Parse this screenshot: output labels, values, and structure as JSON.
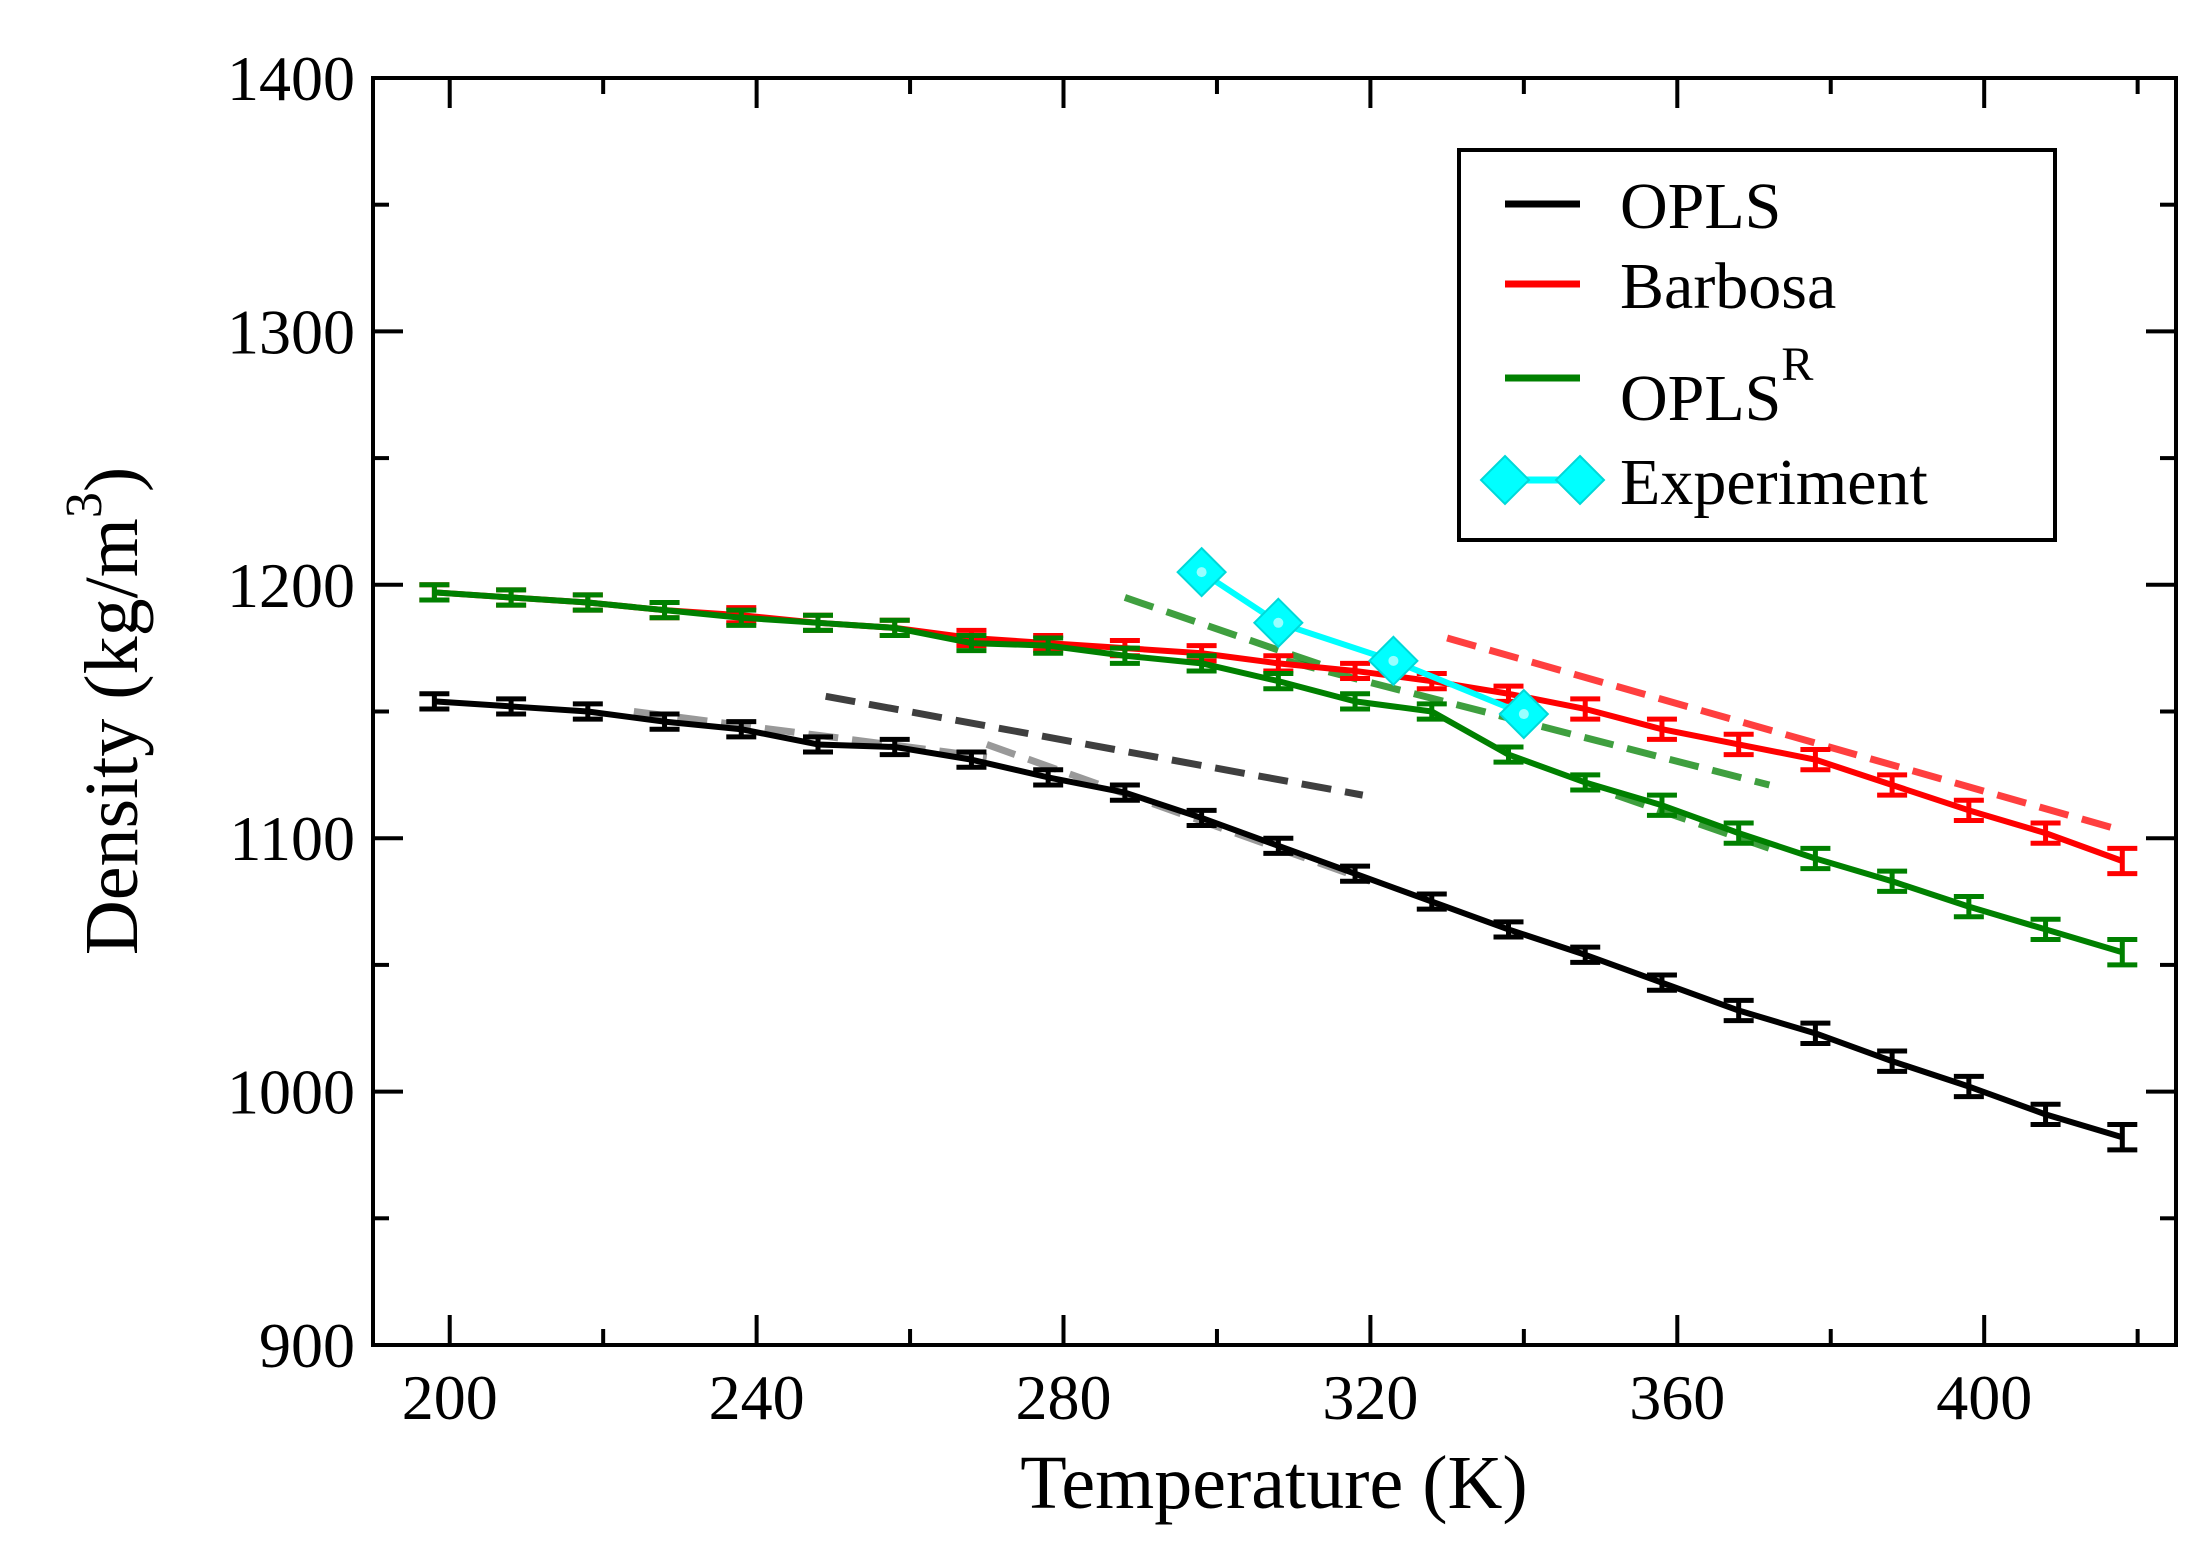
{
  "chart_data": {
    "type": "line",
    "title": "",
    "xlabel": "Temperature (K)",
    "ylabel": "Density (kg/m",
    "ylabel_sup": "3",
    "ylabel_close": ")",
    "xlim": [
      190,
      425
    ],
    "ylim": [
      900,
      1400
    ],
    "xticks": [
      200,
      240,
      280,
      320,
      360,
      400
    ],
    "yticks": [
      900,
      1000,
      1100,
      1200,
      1300,
      1400
    ],
    "legend_position": "top-right",
    "series": [
      {
        "name": "OPLS",
        "color": "#000000",
        "marker": "errorbar",
        "x": [
          198,
          208,
          218,
          228,
          238,
          248,
          258,
          268,
          278,
          288,
          298,
          308,
          318,
          328,
          338,
          348,
          358,
          368,
          378,
          388,
          398,
          408,
          418
        ],
        "y": [
          1154,
          1152,
          1150,
          1146,
          1143,
          1137,
          1136,
          1131,
          1124,
          1118,
          1108,
          1097,
          1086,
          1075,
          1064,
          1054,
          1043,
          1032,
          1023,
          1012,
          1002,
          991,
          982
        ],
        "err": [
          3,
          3,
          3,
          3,
          3,
          3,
          3,
          3,
          3,
          3,
          3,
          3,
          3,
          3,
          3,
          3,
          3,
          4,
          4,
          4,
          4,
          4,
          5
        ]
      },
      {
        "name": "Barbosa",
        "color": "#ff0000",
        "marker": "errorbar",
        "x": [
          198,
          208,
          218,
          228,
          238,
          248,
          258,
          268,
          278,
          288,
          298,
          308,
          318,
          328,
          338,
          348,
          358,
          368,
          378,
          388,
          398,
          408,
          418
        ],
        "y": [
          1197,
          1195,
          1193,
          1190,
          1188,
          1185,
          1183,
          1179,
          1177,
          1175,
          1173,
          1169,
          1166,
          1162,
          1157,
          1151,
          1143,
          1137,
          1131,
          1121,
          1111,
          1102,
          1091
        ],
        "err": [
          3,
          3,
          3,
          3,
          3,
          3,
          3,
          3,
          3,
          3,
          3,
          3,
          3,
          3,
          3,
          4,
          4,
          4,
          4,
          4,
          4,
          4,
          5
        ]
      },
      {
        "name": "OPLS",
        "name_sup": "R",
        "color": "#008000",
        "marker": "errorbar",
        "x": [
          198,
          208,
          218,
          228,
          238,
          248,
          258,
          268,
          278,
          288,
          298,
          308,
          318,
          328,
          338,
          348,
          358,
          368,
          378,
          388,
          398,
          408,
          418
        ],
        "y": [
          1197,
          1195,
          1193,
          1190,
          1187,
          1185,
          1183,
          1177,
          1176,
          1172,
          1169,
          1162,
          1154,
          1150,
          1133,
          1122,
          1113,
          1102,
          1092,
          1083,
          1073,
          1064,
          1055
        ],
        "err": [
          3,
          3,
          3,
          3,
          3,
          3,
          3,
          3,
          3,
          3,
          3,
          3,
          3,
          3,
          3,
          3,
          4,
          4,
          4,
          4,
          4,
          4,
          5
        ]
      },
      {
        "name": "Experiment",
        "color": "#00ffff",
        "marker": "diamond",
        "x": [
          298,
          308,
          323,
          340
        ],
        "y": [
          1205,
          1185,
          1170,
          1149
        ]
      }
    ],
    "fit_lines": [
      {
        "color": "#777777",
        "x": [
          224,
          270
        ],
        "y": [
          1150,
          1132
        ]
      },
      {
        "color": "#000000",
        "x": [
          249,
          319
        ],
        "y": [
          1156,
          1117
        ]
      },
      {
        "color": "#777777",
        "x": [
          270,
          320
        ],
        "y": [
          1137,
          1083
        ]
      },
      {
        "color": "#008000",
        "x": [
          288,
          315
        ],
        "y": [
          1195,
          1167
        ]
      },
      {
        "color": "#008000",
        "x": [
          309,
          372
        ],
        "y": [
          1170,
          1121
        ]
      },
      {
        "color": "#008000",
        "x": [
          352,
          372
        ],
        "y": [
          1117,
          1096
        ]
      },
      {
        "color": "#ff0000",
        "x": [
          330,
          418
        ],
        "y": [
          1179,
          1103
        ]
      }
    ]
  }
}
